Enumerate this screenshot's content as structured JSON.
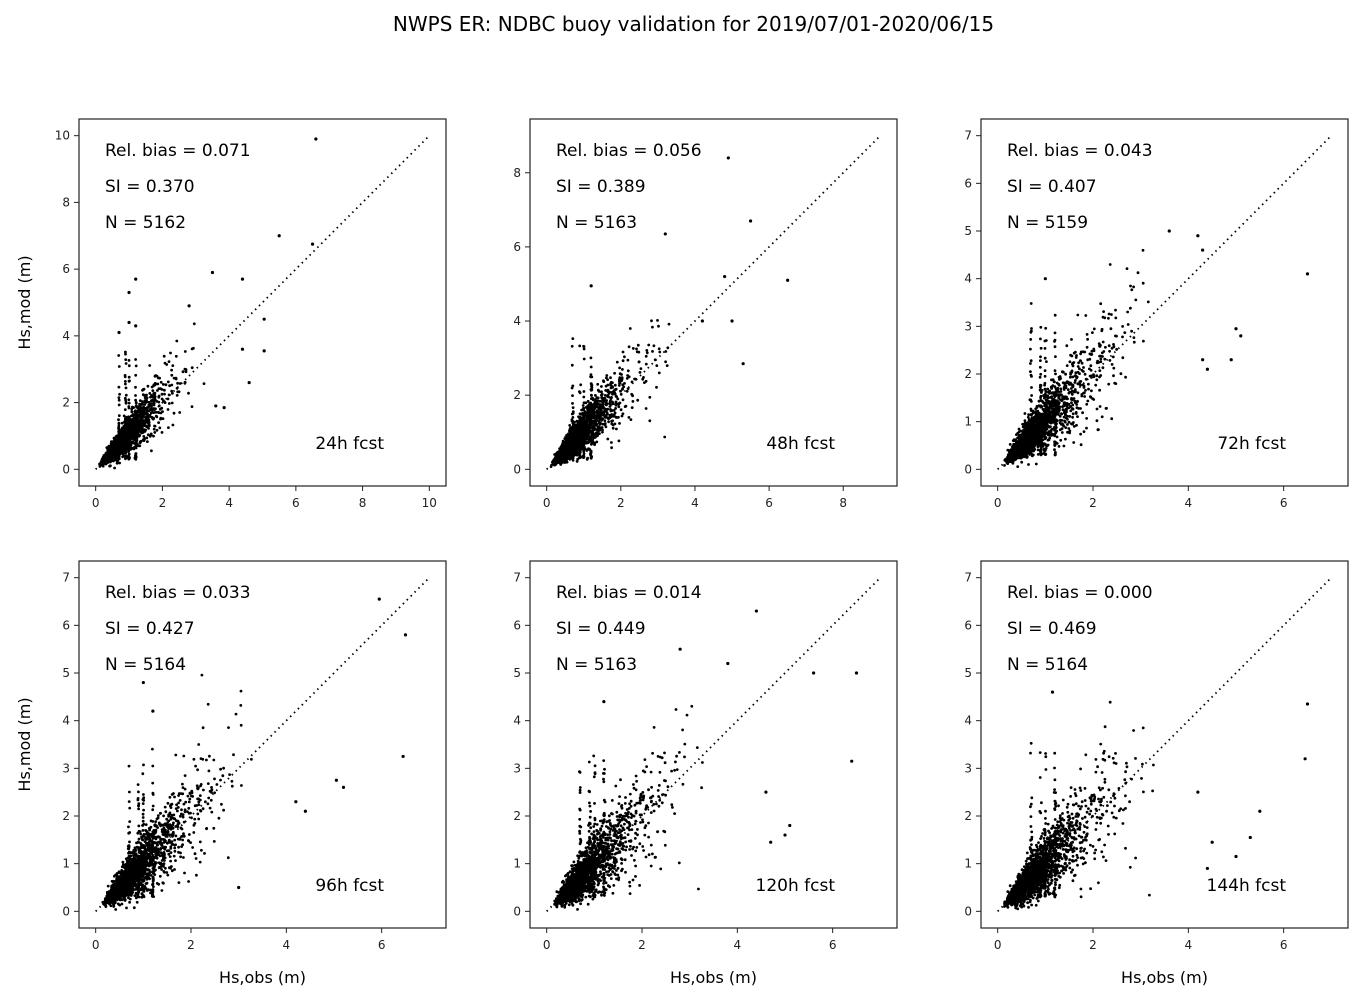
{
  "figure_title": "NWPS ER: NDBC buoy validation for 2019/07/01-2020/06/15",
  "chart_data": [
    {
      "type": "scatter",
      "label": "24h fcst",
      "stats": {
        "rel_bias": "Rel. bias =  0.071",
        "si": "SI =  0.370",
        "n": "N = 5162"
      },
      "xlim": [
        -0.5,
        10.5
      ],
      "ylim": [
        -0.5,
        10.5
      ],
      "xticks": [
        0,
        2,
        4,
        6,
        8,
        10
      ],
      "yticks": [
        0,
        2,
        4,
        6,
        8,
        10
      ],
      "diag_max": 10,
      "xlabel": "",
      "ylabel": "Hs,mod (m)",
      "bias": 0.071,
      "si": 0.37,
      "outliers": [
        [
          6.6,
          9.9
        ],
        [
          5.5,
          7.0
        ],
        [
          6.5,
          6.75
        ],
        [
          3.5,
          5.9
        ],
        [
          4.4,
          5.7
        ],
        [
          1.2,
          5.7
        ],
        [
          1.0,
          5.3
        ],
        [
          2.8,
          4.9
        ],
        [
          1.0,
          4.4
        ],
        [
          1.2,
          4.3
        ],
        [
          5.05,
          4.5
        ],
        [
          5.05,
          3.55
        ],
        [
          4.4,
          3.6
        ],
        [
          4.6,
          2.6
        ],
        [
          3.85,
          1.85
        ],
        [
          3.6,
          1.9
        ],
        [
          0.7,
          4.1
        ]
      ]
    },
    {
      "type": "scatter",
      "label": "48h fcst",
      "stats": {
        "rel_bias": "Rel. bias =  0.056",
        "si": "SI =  0.389",
        "n": "N = 5163"
      },
      "xlim": [
        -0.45,
        9.45
      ],
      "ylim": [
        -0.45,
        9.45
      ],
      "xticks": [
        0,
        2,
        4,
        6,
        8
      ],
      "yticks": [
        0,
        2,
        4,
        6,
        8
      ],
      "diag_max": 9,
      "xlabel": "",
      "ylabel": "",
      "bias": 0.056,
      "si": 0.389,
      "outliers": [
        [
          4.9,
          8.4
        ],
        [
          5.5,
          6.7
        ],
        [
          3.2,
          6.35
        ],
        [
          6.5,
          5.1
        ],
        [
          1.2,
          4.95
        ],
        [
          5.0,
          4.0
        ],
        [
          5.3,
          2.85
        ],
        [
          4.2,
          4.0
        ],
        [
          4.8,
          5.2
        ]
      ]
    },
    {
      "type": "scatter",
      "label": "72h fcst",
      "stats": {
        "rel_bias": "Rel. bias =  0.043",
        "si": "SI =  0.407",
        "n": "N = 5159"
      },
      "xlim": [
        -0.35,
        7.35
      ],
      "ylim": [
        -0.35,
        7.35
      ],
      "xticks": [
        0,
        2,
        4,
        6
      ],
      "yticks": [
        0,
        1,
        2,
        3,
        4,
        5,
        6,
        7
      ],
      "diag_max": 7,
      "xlabel": "",
      "ylabel": "",
      "bias": 0.043,
      "si": 0.407,
      "outliers": [
        [
          6.5,
          4.1
        ],
        [
          3.6,
          5.0
        ],
        [
          4.3,
          4.6
        ],
        [
          4.4,
          2.1
        ],
        [
          5.0,
          2.95
        ],
        [
          5.1,
          2.8
        ],
        [
          4.9,
          2.3
        ],
        [
          4.3,
          2.3
        ],
        [
          1.0,
          4.0
        ],
        [
          4.2,
          4.9
        ]
      ]
    },
    {
      "type": "scatter",
      "label": "96h fcst",
      "stats": {
        "rel_bias": "Rel. bias =  0.033",
        "si": "SI =  0.427",
        "n": "N = 5164"
      },
      "xlim": [
        -0.35,
        7.35
      ],
      "ylim": [
        -0.35,
        7.35
      ],
      "xticks": [
        0,
        2,
        4,
        6
      ],
      "yticks": [
        0,
        1,
        2,
        3,
        4,
        5,
        6,
        7
      ],
      "diag_max": 7,
      "xlabel": "Hs,obs (m)",
      "ylabel": "Hs,mod (m)",
      "bias": 0.033,
      "si": 0.427,
      "outliers": [
        [
          5.95,
          6.55
        ],
        [
          6.5,
          5.8
        ],
        [
          6.45,
          3.25
        ],
        [
          1.0,
          4.8
        ],
        [
          5.05,
          2.75
        ],
        [
          5.2,
          2.6
        ],
        [
          4.4,
          2.1
        ],
        [
          4.2,
          2.3
        ],
        [
          3.0,
          0.5
        ],
        [
          1.2,
          4.2
        ]
      ]
    },
    {
      "type": "scatter",
      "label": "120h fcst",
      "stats": {
        "rel_bias": "Rel. bias =  0.014",
        "si": "SI =  0.449",
        "n": "N = 5163"
      },
      "xlim": [
        -0.35,
        7.35
      ],
      "ylim": [
        -0.35,
        7.35
      ],
      "xticks": [
        0,
        2,
        4,
        6
      ],
      "yticks": [
        0,
        1,
        2,
        3,
        4,
        5,
        6,
        7
      ],
      "diag_max": 7,
      "xlabel": "Hs,obs (m)",
      "ylabel": "",
      "bias": 0.014,
      "si": 0.449,
      "outliers": [
        [
          4.4,
          6.3
        ],
        [
          2.8,
          5.5
        ],
        [
          3.8,
          5.2
        ],
        [
          5.6,
          5.0
        ],
        [
          6.5,
          5.0
        ],
        [
          6.4,
          3.15
        ],
        [
          1.2,
          4.4
        ],
        [
          5.0,
          1.6
        ],
        [
          5.1,
          1.8
        ],
        [
          4.6,
          2.5
        ],
        [
          4.7,
          1.45
        ]
      ]
    },
    {
      "type": "scatter",
      "label": "144h fcst",
      "stats": {
        "rel_bias": "Rel. bias =  0.000",
        "si": "SI =  0.469",
        "n": "N = 5164"
      },
      "xlim": [
        -0.35,
        7.35
      ],
      "ylim": [
        -0.35,
        7.35
      ],
      "xticks": [
        0,
        2,
        4,
        6
      ],
      "yticks": [
        0,
        1,
        2,
        3,
        4,
        5,
        6,
        7
      ],
      "diag_max": 7,
      "xlabel": "Hs,obs (m)",
      "ylabel": "",
      "bias": 0.0,
      "si": 0.469,
      "outliers": [
        [
          6.5,
          4.35
        ],
        [
          6.45,
          3.2
        ],
        [
          1.15,
          4.6
        ],
        [
          5.5,
          2.1
        ],
        [
          5.3,
          1.55
        ],
        [
          5.0,
          1.15
        ],
        [
          4.4,
          0.9
        ],
        [
          4.5,
          1.45
        ],
        [
          4.2,
          2.5
        ]
      ]
    }
  ]
}
